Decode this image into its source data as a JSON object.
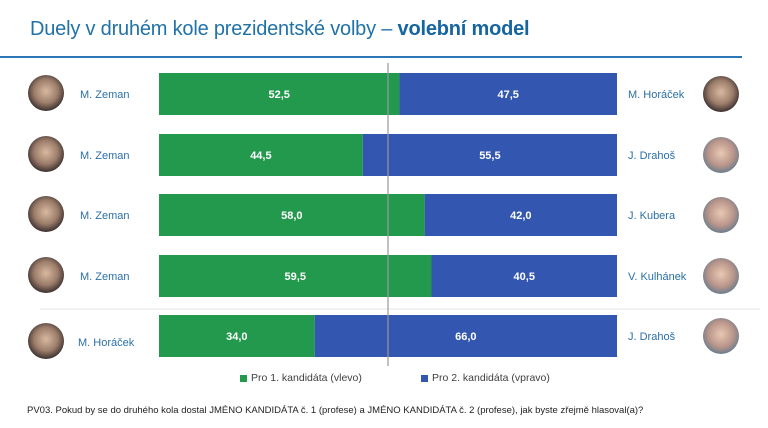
{
  "title": {
    "regular": "Duely v druhém kole prezidentské volby – ",
    "bold": "volební model"
  },
  "colors": {
    "left": "#23994d",
    "right": "#3356b0",
    "title": "#2072a8",
    "header_line": "#2e75b6",
    "name": "#2a6fa8"
  },
  "chart_data": {
    "type": "bar",
    "orientation": "horizontal-stacked-100",
    "title": "Duely v druhém kole prezidentské volby – volební model",
    "xlabel": "",
    "ylabel": "",
    "xlim": [
      0,
      100
    ],
    "reference_line": 50,
    "legend_position": "bottom",
    "series": [
      {
        "name": "Pro 1. kandidáta (vlevo)",
        "values": [
          52.5,
          44.5,
          58.0,
          59.5,
          34.0
        ]
      },
      {
        "name": "Pro 2. kandidáta (vpravo)",
        "values": [
          47.5,
          55.5,
          42.0,
          40.5,
          66.0
        ]
      }
    ],
    "duels": [
      {
        "left": "M. Zeman",
        "right": "M. Horáček",
        "left_value": "52,5",
        "right_value": "47,5"
      },
      {
        "left": "M. Zeman",
        "right": "J. Drahoš",
        "left_value": "44,5",
        "right_value": "55,5"
      },
      {
        "left": "M. Zeman",
        "right": "J. Kubera",
        "left_value": "58,0",
        "right_value": "42,0"
      },
      {
        "left": "M. Zeman",
        "right": "V. Kulhánek",
        "left_value": "59,5",
        "right_value": "40,5"
      },
      {
        "left": "M. Horáček",
        "right": "J. Drahoš",
        "left_value": "34,0",
        "right_value": "66,0"
      }
    ]
  },
  "legend": {
    "left_label": "Pro 1. kandidáta (vlevo)",
    "right_label": "Pro 2. kandidáta (vpravo)"
  },
  "footnote": "PV03. Pokud by se do druhého kola dostal JMÉNO KANDIDÁTA č. 1 (profese) a JMÉNO KANDIDÁTA č. 2 (profese), jak byste zřejmě hlasoval(a)?"
}
